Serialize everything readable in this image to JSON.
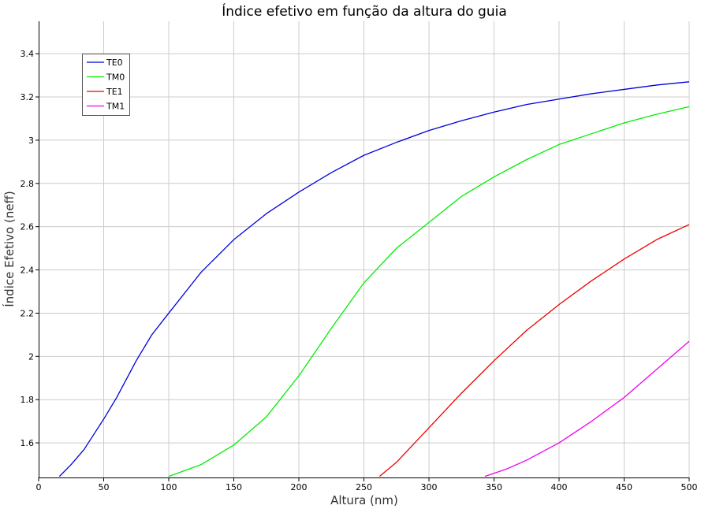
{
  "chart_data": {
    "type": "line",
    "title": "Índice efetivo em função da altura do guia",
    "xlabel": "Altura (nm)",
    "ylabel": "Índice Efetivo (neff)",
    "xlim": [
      0,
      500
    ],
    "ylim": [
      1.44,
      3.55
    ],
    "grid": true,
    "legend_position": "top-left",
    "x_ticks": [
      0,
      50,
      100,
      150,
      200,
      250,
      300,
      350,
      400,
      450,
      500
    ],
    "x_tick_labels": [
      "0",
      "50",
      "100",
      "150",
      "200",
      "250",
      "300",
      "350",
      "400",
      "450",
      "500"
    ],
    "y_ticks": [
      1.6,
      1.8,
      2,
      2.2,
      2.4,
      2.6,
      2.8,
      3,
      3.2,
      3.4
    ],
    "y_tick_labels": [
      "1.6",
      "1.8",
      "2",
      "2.2",
      "2.4",
      "2.6",
      "2.8",
      "3",
      "3.2",
      "3.4"
    ],
    "series": [
      {
        "name": "TE0",
        "color": "#0000dd",
        "x": [
          16,
          25,
          35,
          50,
          60,
          75,
          87,
          100,
          125,
          150,
          175,
          200,
          225,
          250,
          275,
          300,
          325,
          350,
          375,
          400,
          425,
          450,
          475,
          500
        ],
        "y": [
          1.445,
          1.5,
          1.57,
          1.71,
          1.81,
          1.98,
          2.1,
          2.2,
          2.39,
          2.54,
          2.66,
          2.76,
          2.85,
          2.93,
          2.99,
          3.045,
          3.09,
          3.13,
          3.165,
          3.19,
          3.215,
          3.235,
          3.255,
          3.27
        ]
      },
      {
        "name": "TM0",
        "color": "#00ee00",
        "x": [
          100,
          125,
          150,
          175,
          200,
          225,
          250,
          275,
          300,
          325,
          350,
          375,
          400,
          425,
          450,
          475,
          500
        ],
        "y": [
          1.445,
          1.5,
          1.59,
          1.72,
          1.91,
          2.13,
          2.34,
          2.5,
          2.62,
          2.74,
          2.83,
          2.91,
          2.98,
          3.03,
          3.08,
          3.12,
          3.155
        ]
      },
      {
        "name": "TE1",
        "color": "#ee0000",
        "x": [
          262,
          275,
          300,
          325,
          350,
          375,
          400,
          425,
          450,
          475,
          500
        ],
        "y": [
          1.445,
          1.51,
          1.67,
          1.83,
          1.98,
          2.12,
          2.24,
          2.35,
          2.45,
          2.54,
          2.61
        ]
      },
      {
        "name": "TM1",
        "color": "#ee00ee",
        "x": [
          343,
          360,
          375,
          400,
          425,
          450,
          475,
          500
        ],
        "y": [
          1.445,
          1.48,
          1.52,
          1.6,
          1.7,
          1.81,
          1.94,
          2.07
        ]
      }
    ]
  }
}
